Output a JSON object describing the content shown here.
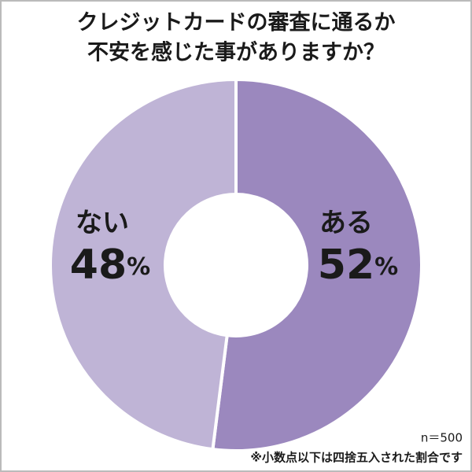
{
  "chart_data": {
    "type": "donut",
    "title": [
      "クレジットカードの審査に通るか",
      "不安を感じた事がありますか？"
    ],
    "categories": [
      "ある",
      "ない"
    ],
    "values": [
      52,
      48
    ],
    "value_labels": [
      "52%",
      "48%"
    ],
    "colors": [
      "#9b88be",
      "#bfb4d6"
    ],
    "sample_size": "n＝500",
    "footnote": "※小数点以下は四捨五入された割合です"
  }
}
